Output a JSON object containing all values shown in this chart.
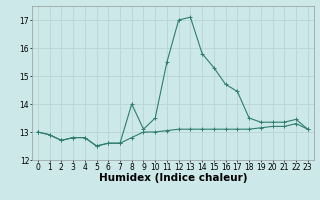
{
  "xlabel": "Humidex (Indice chaleur)",
  "line1_x": [
    0,
    1,
    2,
    3,
    4,
    5,
    6,
    7,
    8,
    9,
    10,
    11,
    12,
    13,
    14,
    15,
    16,
    17,
    18,
    19,
    20,
    21,
    22,
    23
  ],
  "line1_y": [
    13.0,
    12.9,
    12.7,
    12.8,
    12.8,
    12.5,
    12.6,
    12.6,
    12.8,
    13.0,
    13.0,
    13.05,
    13.1,
    13.1,
    13.1,
    13.1,
    13.1,
    13.1,
    13.1,
    13.15,
    13.2,
    13.2,
    13.3,
    13.1
  ],
  "line2_x": [
    0,
    1,
    2,
    3,
    4,
    5,
    6,
    7,
    8,
    9,
    10,
    11,
    12,
    13,
    14,
    15,
    16,
    17,
    18,
    19,
    20,
    21,
    22,
    23
  ],
  "line2_y": [
    13.0,
    12.9,
    12.7,
    12.8,
    12.8,
    12.5,
    12.6,
    12.6,
    14.0,
    13.1,
    13.5,
    15.5,
    17.0,
    17.1,
    15.8,
    15.3,
    14.7,
    14.45,
    13.5,
    13.35,
    13.35,
    13.35,
    13.45,
    13.1
  ],
  "line_color": "#2e7d6e",
  "bg_color": "#cce8e8",
  "grid_color": "#b8d4d4",
  "ylim": [
    12,
    17.5
  ],
  "xlim": [
    -0.5,
    23.5
  ],
  "yticks": [
    12,
    13,
    14,
    15,
    16,
    17
  ],
  "xticks": [
    0,
    1,
    2,
    3,
    4,
    5,
    6,
    7,
    8,
    9,
    10,
    11,
    12,
    13,
    14,
    15,
    16,
    17,
    18,
    19,
    20,
    21,
    22,
    23
  ],
  "tick_fontsize": 5.5,
  "xlabel_fontsize": 7.5
}
